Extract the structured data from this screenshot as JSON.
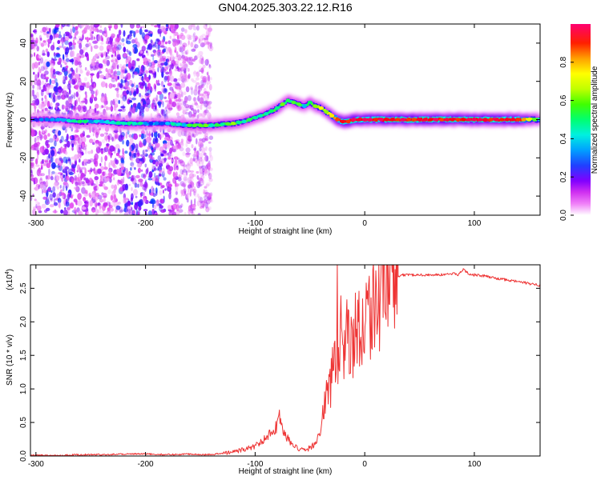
{
  "chart_data": [
    {
      "type": "heatmap",
      "title": "GN04.2025.303.22.12.R16",
      "xlabel": "Height of straight line (km)",
      "ylabel": "Frequency (Hz)",
      "xlim": [
        -305,
        160
      ],
      "ylim": [
        -50,
        50
      ],
      "xticks": [
        -300,
        -200,
        -100,
        0,
        100
      ],
      "xtick_labels": [
        "-300",
        "-200",
        "-100",
        "0",
        "100"
      ],
      "yticks": [
        -40,
        -20,
        0,
        20,
        40
      ],
      "ytick_labels": [
        "-40",
        "-20",
        "0",
        "20",
        "40"
      ],
      "colorbar": {
        "label": "Normalized spectral amplitude",
        "range": [
          0,
          1
        ],
        "ticks": [
          0,
          0.2,
          0.4,
          0.6,
          0.8
        ],
        "tick_labels": [
          "0.0",
          "0.2",
          "0.4",
          "0.6",
          "0.8"
        ],
        "colors": [
          "#ffffff",
          "#e040f0",
          "#7000ff",
          "#0030ff",
          "#00e0ff",
          "#00ff60",
          "#80ff00",
          "#ffff00",
          "#ff8000",
          "#ff0000",
          "#ff0060"
        ]
      },
      "ridge": {
        "name": "dominant frequency",
        "x": [
          -305,
          -280,
          -260,
          -240,
          -220,
          -200,
          -180,
          -160,
          -140,
          -120,
          -110,
          -100,
          -90,
          -80,
          -75,
          -70,
          -65,
          -60,
          -55,
          -50,
          -45,
          -40,
          -35,
          -30,
          -25,
          -20,
          -15,
          -10,
          -5,
          0,
          20,
          40,
          60,
          80,
          100,
          120,
          140,
          160
        ],
        "y": [
          0,
          0,
          -1,
          -1,
          -2,
          -2,
          -2,
          -3,
          -3,
          -2,
          -1,
          1,
          3,
          6,
          8,
          10,
          9,
          8,
          7,
          9,
          7,
          6,
          4,
          2,
          0,
          -1,
          -1,
          0,
          0,
          0,
          0,
          0,
          0,
          0,
          0,
          0,
          0,
          0
        ],
        "amplitude": [
          0.25,
          0.35,
          0.45,
          0.4,
          0.45,
          0.4,
          0.35,
          0.5,
          0.5,
          0.55,
          0.5,
          0.45,
          0.5,
          0.55,
          0.5,
          0.45,
          0.5,
          0.5,
          0.45,
          0.5,
          0.55,
          0.6,
          0.65,
          0.7,
          0.85,
          0.9,
          0.95,
          0.95,
          0.9,
          0.92,
          0.95,
          0.95,
          0.95,
          0.95,
          0.95,
          0.95,
          0.9,
          0.5
        ]
      }
    },
    {
      "type": "line",
      "xlabel": "Height of straight line (km)",
      "ylabel": "SNR (10 * v/v)",
      "y_multiplier_prefix": "(x10",
      "y_multiplier_exp": "4",
      "y_multiplier_suffix": ")",
      "xlim": [
        -305,
        160
      ],
      "ylim": [
        0,
        2.85
      ],
      "xticks": [
        -300,
        -200,
        -100,
        0,
        100
      ],
      "xtick_labels": [
        "-300",
        "-200",
        "-100",
        "0",
        "100"
      ],
      "yticks": [
        0,
        0.5,
        1.0,
        1.5,
        2.0,
        2.5
      ],
      "ytick_labels": [
        "0.0",
        "0.5",
        "1.0",
        "1.5",
        "2.0",
        "2.5"
      ],
      "color": "#ee3333",
      "series": [
        {
          "name": "SNR",
          "x": [
            -305,
            -280,
            -260,
            -240,
            -220,
            -200,
            -180,
            -160,
            -140,
            -130,
            -120,
            -110,
            -105,
            -100,
            -95,
            -90,
            -85,
            -80,
            -78,
            -75,
            -70,
            -65,
            -60,
            -55,
            -50,
            -45,
            -40,
            -38,
            -35,
            -32,
            -30,
            -28,
            -25,
            -22,
            -20,
            -18,
            -15,
            -12,
            -10,
            -8,
            -5,
            -2,
            0,
            5,
            10,
            15,
            20,
            25,
            30,
            35,
            40,
            50,
            60,
            70,
            80,
            85,
            90,
            95,
            100,
            110,
            120,
            130,
            140,
            150,
            160
          ],
          "y": [
            0.01,
            0.01,
            0.02,
            0.02,
            0.03,
            0.03,
            0.02,
            0.03,
            0.02,
            0.04,
            0.06,
            0.1,
            0.12,
            0.15,
            0.2,
            0.3,
            0.35,
            0.45,
            0.6,
            0.4,
            0.25,
            0.15,
            0.1,
            0.08,
            0.12,
            0.2,
            0.4,
            0.6,
            0.9,
            1.0,
            1.2,
            1.4,
            1.6,
            1.5,
            1.6,
            1.7,
            1.8,
            1.65,
            1.8,
            1.9,
            1.95,
            2.0,
            2.05,
            2.2,
            2.3,
            2.45,
            2.55,
            2.6,
            2.65,
            2.7,
            2.7,
            2.7,
            2.7,
            2.7,
            2.72,
            2.7,
            2.78,
            2.72,
            2.7,
            2.68,
            2.65,
            2.62,
            2.6,
            2.57,
            2.54
          ]
        }
      ]
    }
  ]
}
